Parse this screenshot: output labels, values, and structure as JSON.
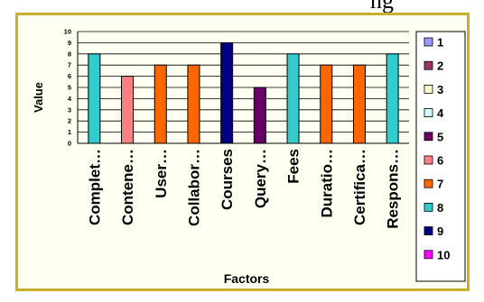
{
  "clipped_heading": "ng",
  "chart_data": {
    "type": "bar",
    "title": "",
    "xlabel": "Factors",
    "ylabel": "Value",
    "ylim": [
      0,
      10
    ],
    "yticks": [
      0,
      1,
      2,
      3,
      4,
      5,
      6,
      7,
      8,
      9,
      10
    ],
    "grid": true,
    "legend_position": "right",
    "categories": [
      "Complet…",
      "Contene…",
      "User…",
      "Collabor…",
      "Courses",
      "Query…",
      "Fees",
      "Duratio…",
      "Certifica…",
      "Respons…"
    ],
    "values": [
      8,
      6,
      7,
      7,
      9,
      5,
      8,
      7,
      7,
      8
    ],
    "bar_colors": [
      "#33cccc",
      "#ff8080",
      "#ff6600",
      "#ff6600",
      "#000080",
      "#660066",
      "#33cccc",
      "#ff6600",
      "#ff6600",
      "#33cccc"
    ],
    "legend": [
      {
        "label": "1",
        "color": "#9999ff"
      },
      {
        "label": "2",
        "color": "#993366"
      },
      {
        "label": "3",
        "color": "#ffffcc"
      },
      {
        "label": "4",
        "color": "#ccffff"
      },
      {
        "label": "5",
        "color": "#660066"
      },
      {
        "label": "6",
        "color": "#ff8080"
      },
      {
        "label": "7",
        "color": "#ff6600"
      },
      {
        "label": "8",
        "color": "#33cccc"
      },
      {
        "label": "9",
        "color": "#000080"
      },
      {
        "label": "10",
        "color": "#ff00ff"
      }
    ]
  }
}
